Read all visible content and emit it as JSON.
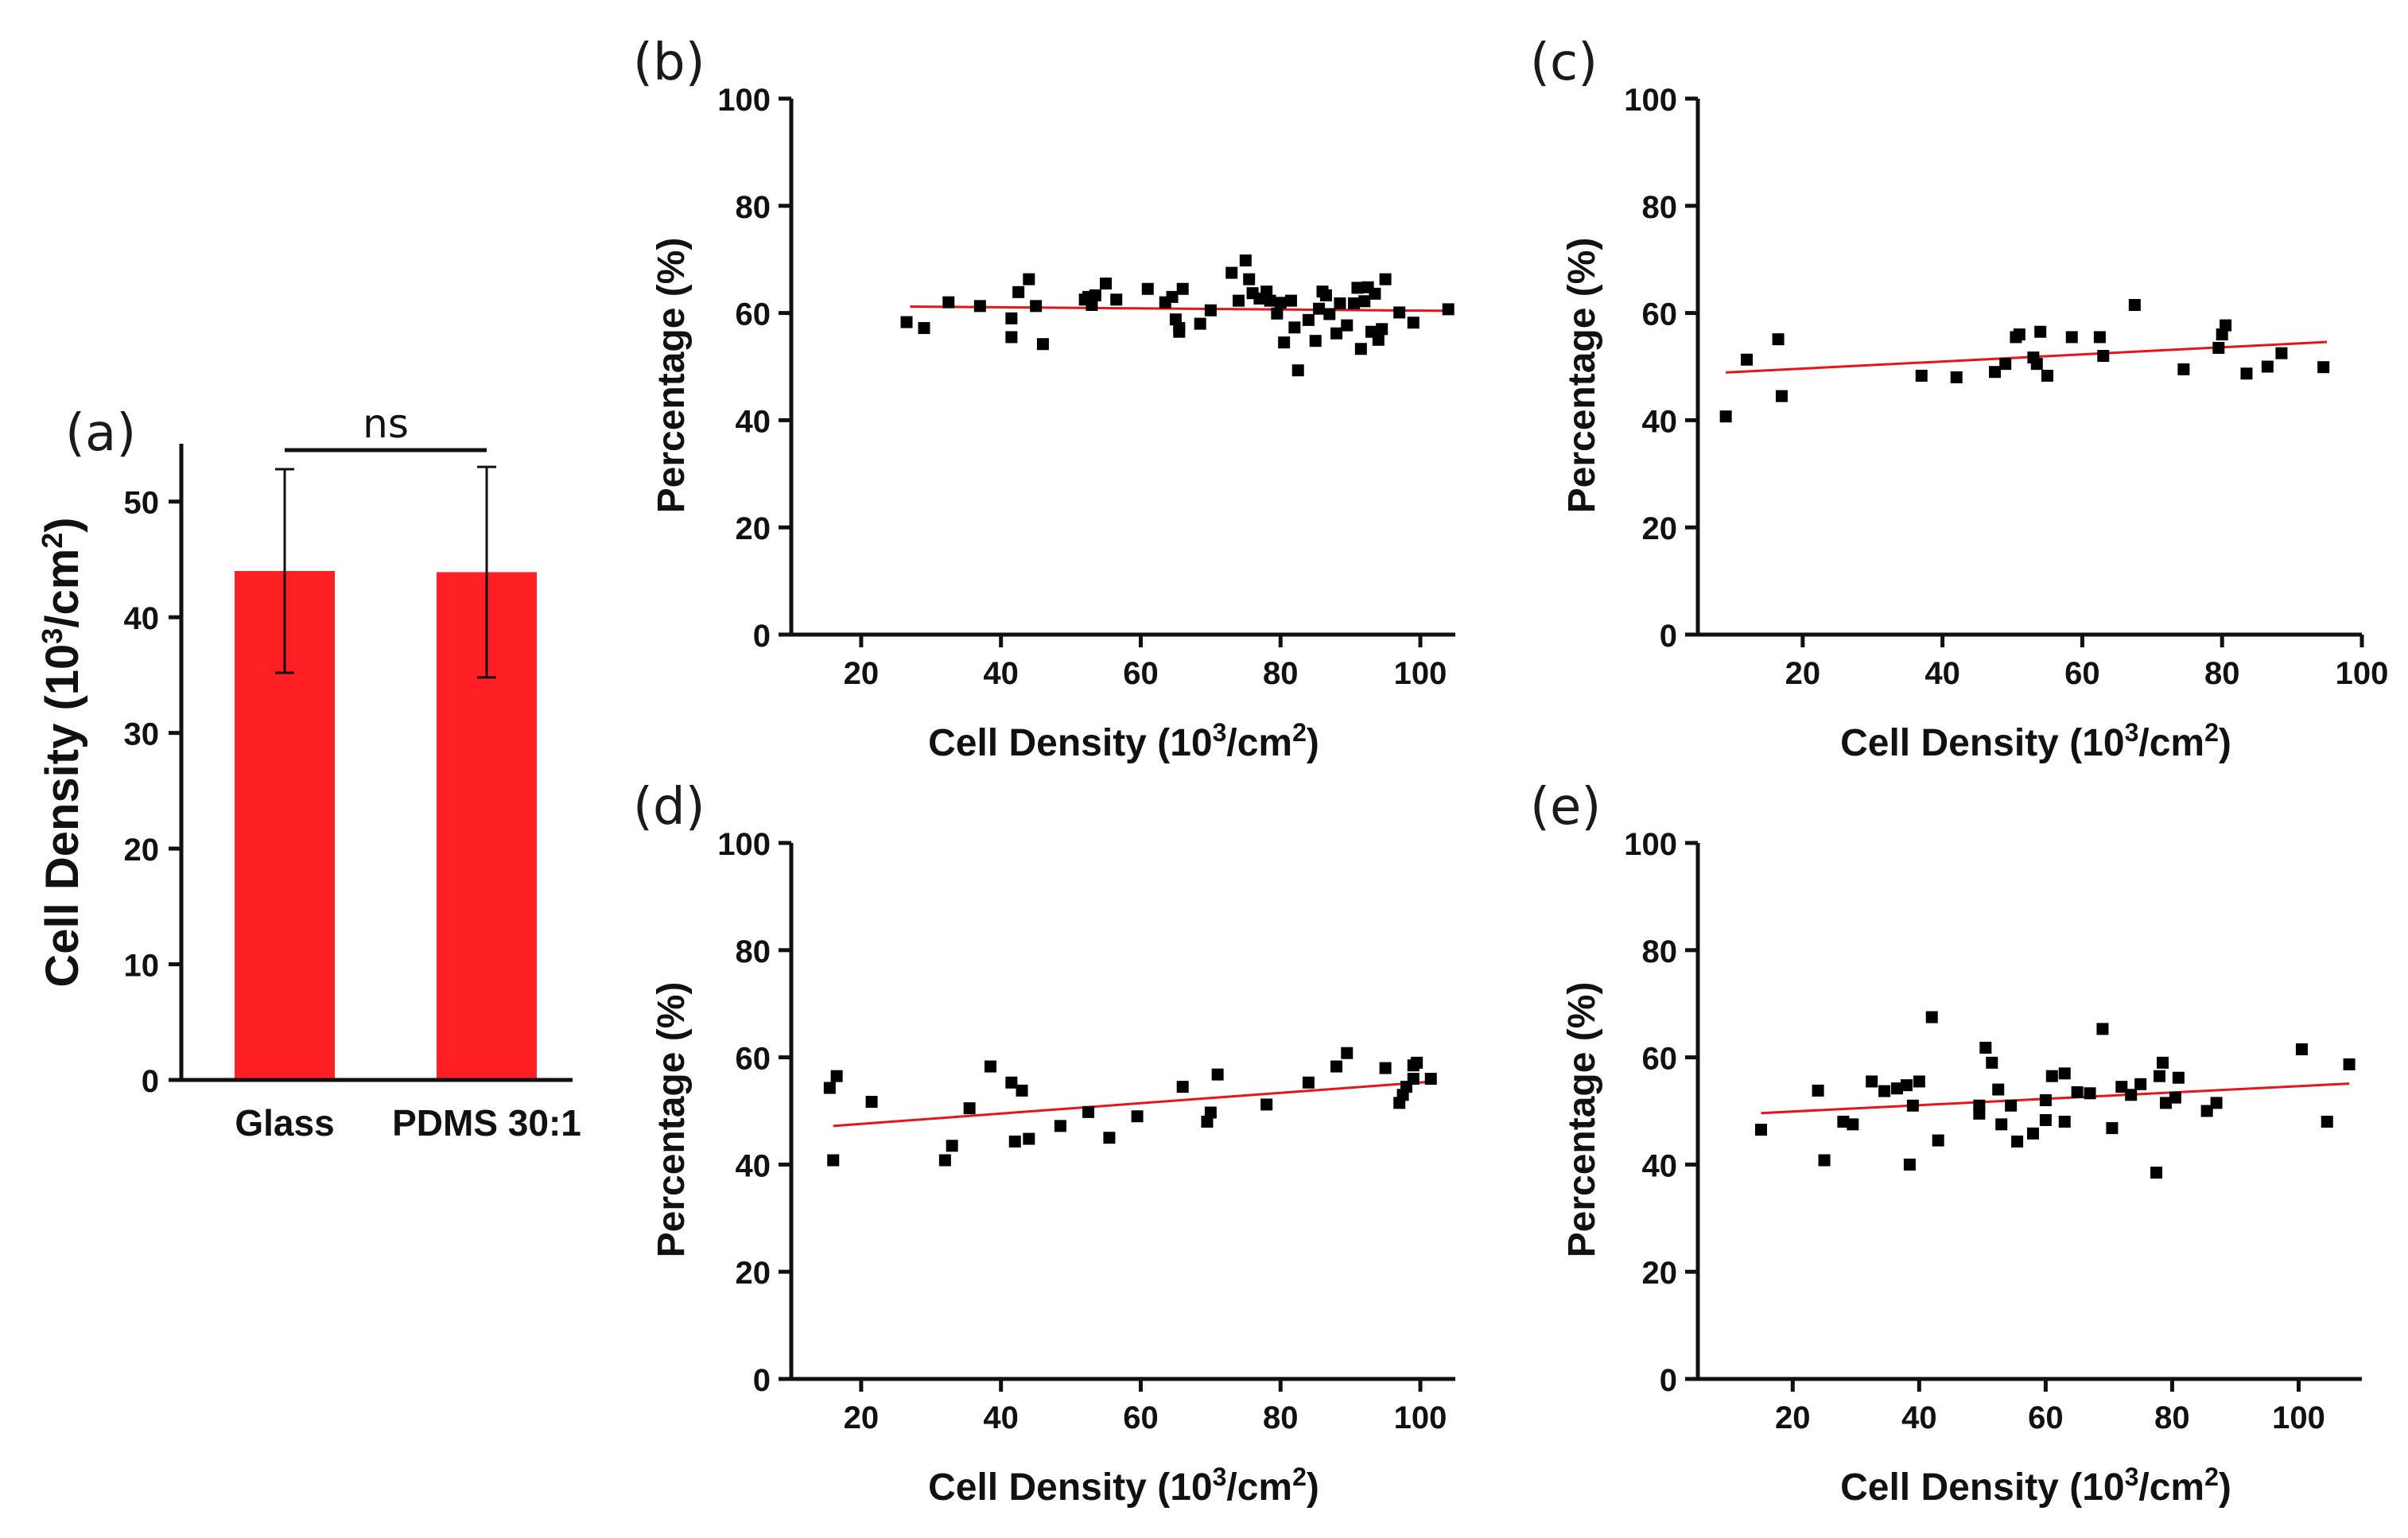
{
  "colors": {
    "bar": "#ff1f24",
    "fit": "#e8141c",
    "marker": "#000000",
    "axis": "#111111"
  },
  "chart_data": [
    {
      "id": "a",
      "panel_label": "(a)",
      "type": "bar",
      "categories": [
        "Glass",
        "PDMS 30:1"
      ],
      "values": [
        44.0,
        43.9
      ],
      "errors": [
        8.8,
        9.1
      ],
      "ylabel_main": "Cell Density (10",
      "ylabel_sup": "3",
      "ylabel_mid": "/cm",
      "ylabel_sup2": "2",
      "ylabel_end": ")",
      "ylim": [
        0,
        55
      ],
      "yticks": [
        0,
        10,
        20,
        30,
        40,
        50
      ],
      "significance": "ns"
    },
    {
      "id": "b",
      "panel_label": "(b)",
      "type": "scatter",
      "xlabel_main": "Cell Density (10",
      "xlabel_sup": "3",
      "xlabel_mid": "/cm",
      "xlabel_sup2": "2",
      "xlabel_end": ")",
      "ylabel": "Percentage (%)",
      "xlim": [
        10,
        105
      ],
      "ylim": [
        0,
        100
      ],
      "xticks": [
        20,
        40,
        60,
        80,
        100
      ],
      "yticks": [
        0,
        20,
        40,
        60,
        80,
        100
      ],
      "fit": {
        "x": [
          27,
          104
        ],
        "y": [
          61.2,
          60.4
        ]
      },
      "points": [
        [
          26.5,
          58.3
        ],
        [
          29,
          57.2
        ],
        [
          32.5,
          62
        ],
        [
          37,
          61.3
        ],
        [
          41.5,
          59
        ],
        [
          41.5,
          55.5
        ],
        [
          42.5,
          63.9
        ],
        [
          44,
          66.3
        ],
        [
          45,
          61.3
        ],
        [
          46,
          54.2
        ],
        [
          52,
          62.5
        ],
        [
          52.5,
          63
        ],
        [
          53,
          61.5
        ],
        [
          53.5,
          63.3
        ],
        [
          55,
          65.5
        ],
        [
          56.5,
          62.5
        ],
        [
          61,
          64.5
        ],
        [
          63.5,
          62
        ],
        [
          64.5,
          63
        ],
        [
          65,
          58.8
        ],
        [
          65.5,
          57.2
        ],
        [
          65.5,
          56.5
        ],
        [
          66,
          64.5
        ],
        [
          68.5,
          58
        ],
        [
          70,
          60.5
        ],
        [
          73,
          67.5
        ],
        [
          74,
          62.3
        ],
        [
          75,
          69.8
        ],
        [
          75.5,
          66.3
        ],
        [
          76,
          63.7
        ],
        [
          77,
          62.7
        ],
        [
          78,
          64
        ],
        [
          78.5,
          62.3
        ],
        [
          79.5,
          59.9
        ],
        [
          80,
          61.9
        ],
        [
          80.5,
          54.5
        ],
        [
          81.5,
          62.3
        ],
        [
          82,
          57.3
        ],
        [
          82.5,
          49.3
        ],
        [
          84,
          58.7
        ],
        [
          85,
          54.8
        ],
        [
          85.5,
          60.8
        ],
        [
          86,
          64
        ],
        [
          86.5,
          63.3
        ],
        [
          87,
          59.8
        ],
        [
          88,
          56.2
        ],
        [
          88.5,
          61.8
        ],
        [
          89.5,
          57.7
        ],
        [
          90.5,
          61.8
        ],
        [
          91,
          64.7
        ],
        [
          91.5,
          53.3
        ],
        [
          92,
          62.2
        ],
        [
          92.5,
          64.8
        ],
        [
          93,
          56.5
        ],
        [
          93.5,
          63.6
        ],
        [
          94,
          55
        ],
        [
          94.5,
          57
        ],
        [
          95,
          66.3
        ],
        [
          97,
          60.1
        ],
        [
          99,
          58.2
        ],
        [
          104,
          60.7
        ]
      ]
    },
    {
      "id": "c",
      "panel_label": "(c)",
      "type": "scatter",
      "xlabel_main": "Cell Density (10",
      "xlabel_sup": "3",
      "xlabel_mid": "/cm",
      "xlabel_sup2": "2",
      "xlabel_end": ")",
      "ylabel": "Percentage (%)",
      "xlim": [
        5,
        100
      ],
      "ylim": [
        0,
        100
      ],
      "xticks": [
        20,
        40,
        60,
        80,
        100
      ],
      "yticks": [
        0,
        20,
        40,
        60,
        80,
        100
      ],
      "fit": {
        "x": [
          9,
          95
        ],
        "y": [
          48.9,
          54.6
        ]
      },
      "points": [
        [
          9,
          40.7
        ],
        [
          12,
          51.3
        ],
        [
          16.5,
          55.1
        ],
        [
          17,
          44.5
        ],
        [
          37,
          48.3
        ],
        [
          42,
          48
        ],
        [
          47.5,
          49
        ],
        [
          49,
          50.5
        ],
        [
          50.5,
          55.5
        ],
        [
          51,
          56
        ],
        [
          53,
          51.7
        ],
        [
          53.5,
          50.5
        ],
        [
          54,
          56.5
        ],
        [
          55,
          48.3
        ],
        [
          58.5,
          55.5
        ],
        [
          62.5,
          55.5
        ],
        [
          63,
          52
        ],
        [
          67.5,
          61.5
        ],
        [
          74.5,
          49.5
        ],
        [
          79.5,
          53.5
        ],
        [
          80,
          56
        ],
        [
          80.5,
          57.7
        ],
        [
          83.5,
          48.7
        ],
        [
          86.5,
          50
        ],
        [
          88.5,
          52.5
        ],
        [
          94.5,
          49.9
        ]
      ]
    },
    {
      "id": "d",
      "panel_label": "(d)",
      "type": "scatter",
      "xlabel_main": "Cell Density (10",
      "xlabel_sup": "3",
      "xlabel_mid": "/cm",
      "xlabel_sup2": "2",
      "xlabel_end": ")",
      "ylabel": "Percentage (%)",
      "xlim": [
        10,
        105
      ],
      "ylim": [
        0,
        100
      ],
      "xticks": [
        20,
        40,
        60,
        80,
        100
      ],
      "yticks": [
        0,
        20,
        40,
        60,
        80,
        100
      ],
      "fit": {
        "x": [
          16,
          102
        ],
        "y": [
          47.2,
          55.5
        ]
      },
      "points": [
        [
          15.5,
          54.3
        ],
        [
          16,
          40.8
        ],
        [
          16.5,
          56.5
        ],
        [
          21.5,
          51.7
        ],
        [
          32,
          40.8
        ],
        [
          33,
          43.5
        ],
        [
          35.5,
          50.5
        ],
        [
          38.5,
          58.3
        ],
        [
          41.5,
          55.3
        ],
        [
          42,
          44.3
        ],
        [
          43,
          53.8
        ],
        [
          44,
          44.8
        ],
        [
          48.5,
          47.2
        ],
        [
          52.5,
          49.8
        ],
        [
          55.5,
          45
        ],
        [
          59.5,
          49
        ],
        [
          66,
          54.5
        ],
        [
          69.5,
          48
        ],
        [
          70,
          49.7
        ],
        [
          71,
          56.8
        ],
        [
          78,
          51.2
        ],
        [
          84,
          55.3
        ],
        [
          88,
          58.3
        ],
        [
          89.5,
          60.8
        ],
        [
          95,
          58
        ],
        [
          97,
          51.5
        ],
        [
          97.5,
          53
        ],
        [
          98,
          54.5
        ],
        [
          99,
          56
        ],
        [
          99,
          58.5
        ],
        [
          99.5,
          59
        ],
        [
          101.5,
          56
        ]
      ]
    },
    {
      "id": "e",
      "panel_label": "(e)",
      "type": "scatter",
      "xlabel_main": "Cell Density (10",
      "xlabel_sup": "3",
      "xlabel_mid": "/cm",
      "xlabel_sup2": "2",
      "xlabel_end": ")",
      "ylabel": "Percentage (%)",
      "xlim": [
        5,
        110
      ],
      "ylim": [
        0,
        100
      ],
      "xticks": [
        20,
        40,
        60,
        80,
        100
      ],
      "yticks": [
        0,
        20,
        40,
        60,
        80,
        100
      ],
      "fit": {
        "x": [
          15,
          108
        ],
        "y": [
          49.6,
          55.1
        ]
      },
      "points": [
        [
          15,
          46.5
        ],
        [
          24,
          53.8
        ],
        [
          25,
          40.8
        ],
        [
          28,
          48
        ],
        [
          29.5,
          47.5
        ],
        [
          32.5,
          55.5
        ],
        [
          34.5,
          53.7
        ],
        [
          36.5,
          54.2
        ],
        [
          38,
          54.8
        ],
        [
          38.5,
          40
        ],
        [
          39,
          51
        ],
        [
          40,
          55.5
        ],
        [
          42,
          67.5
        ],
        [
          43,
          44.5
        ],
        [
          49.5,
          49.5
        ],
        [
          49.5,
          51
        ],
        [
          50.5,
          61.8
        ],
        [
          51.5,
          59
        ],
        [
          52.5,
          54
        ],
        [
          53,
          47.5
        ],
        [
          54.5,
          51
        ],
        [
          55.5,
          44.3
        ],
        [
          58,
          45.8
        ],
        [
          60,
          52
        ],
        [
          60,
          48.3
        ],
        [
          61,
          56.5
        ],
        [
          63,
          57
        ],
        [
          63,
          48
        ],
        [
          65,
          53.5
        ],
        [
          67,
          53.3
        ],
        [
          69,
          65.3
        ],
        [
          70.5,
          46.8
        ],
        [
          72,
          54.5
        ],
        [
          73.5,
          53
        ],
        [
          75,
          55
        ],
        [
          77.5,
          38.5
        ],
        [
          78,
          56.5
        ],
        [
          78.5,
          59
        ],
        [
          79,
          51.5
        ],
        [
          80.5,
          52.5
        ],
        [
          81,
          56.2
        ],
        [
          85.5,
          50
        ],
        [
          87,
          51.5
        ],
        [
          100.5,
          61.5
        ],
        [
          104.5,
          48
        ],
        [
          108,
          58.7
        ]
      ]
    }
  ]
}
